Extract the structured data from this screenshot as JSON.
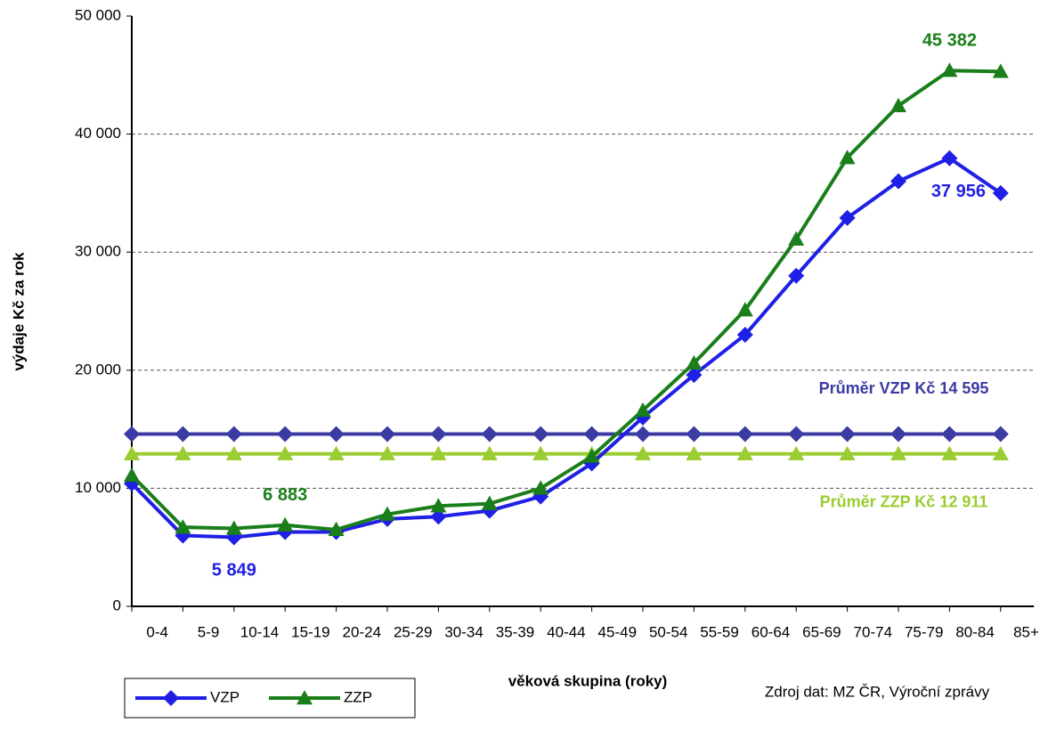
{
  "chart_data": {
    "type": "line",
    "y_label": "výdaje Kč za rok",
    "x_label": "věková skupina (roky)",
    "source": "Zdroj dat: MZ ČR, Výroční zprávy",
    "categories": [
      "0-4",
      "5-9",
      "10-14",
      "15-19",
      "20-24",
      "25-29",
      "30-34",
      "35-39",
      "40-44",
      "45-49",
      "50-54",
      "55-59",
      "60-64",
      "65-69",
      "70-74",
      "75-79",
      "80-84",
      "85+"
    ],
    "series": [
      {
        "name": "VZP",
        "color": "#1f1fe6",
        "marker": "diamond",
        "values": [
          10400,
          6000,
          5849,
          6300,
          6300,
          7400,
          7600,
          8100,
          9300,
          12100,
          16000,
          19600,
          23000,
          28000,
          32900,
          36000,
          37956,
          35000
        ],
        "value_labels": [
          null,
          null,
          "5 849",
          null,
          null,
          null,
          null,
          null,
          null,
          null,
          null,
          null,
          null,
          null,
          null,
          null,
          "37 956",
          null
        ]
      },
      {
        "name": "ZZP",
        "color": "#1a7f1a",
        "marker": "triangle",
        "values": [
          11100,
          6700,
          6600,
          6883,
          6500,
          7800,
          8500,
          8700,
          10000,
          12700,
          16600,
          20600,
          25100,
          31100,
          38000,
          42400,
          45382,
          45300
        ],
        "value_labels": [
          null,
          null,
          null,
          "6 883",
          null,
          null,
          null,
          null,
          null,
          null,
          null,
          null,
          null,
          null,
          null,
          null,
          "45 382",
          null
        ]
      }
    ],
    "average_lines": [
      {
        "label": "Průměr VZP Kč 14 595",
        "value": 14595,
        "color": "#3b3ba3",
        "marker": "diamond"
      },
      {
        "label": "Průměr ZZP Kč 12 911",
        "value": 12911,
        "color": "#9acd32",
        "marker": "triangle"
      }
    ],
    "ylim": [
      0,
      50000
    ],
    "yticks": [
      0,
      {
        "value": 10000,
        "label": "10 000"
      },
      {
        "value": 20000,
        "label": "20 000"
      },
      {
        "value": 30000,
        "label": "30 000"
      },
      {
        "value": 40000,
        "label": "40 000"
      },
      {
        "value": 50000,
        "label": "50 000"
      }
    ],
    "grid": true
  }
}
